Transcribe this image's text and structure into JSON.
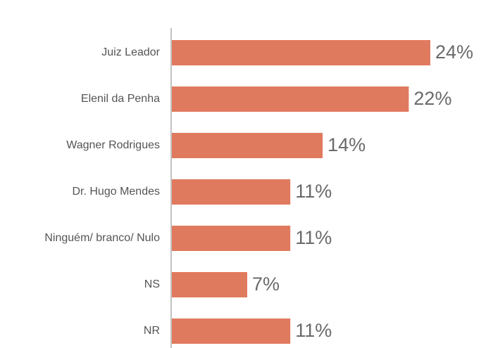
{
  "chart_data": {
    "type": "bar",
    "orientation": "horizontal",
    "categories": [
      "Juiz Leador",
      "Elenil da Penha",
      "Wagner Rodrigues",
      "Dr. Hugo Mendes",
      "Ninguém/ branco/ Nulo",
      "NS",
      "NR"
    ],
    "values": [
      24,
      22,
      14,
      11,
      11,
      7,
      11
    ],
    "value_labels": [
      "24%",
      "22%",
      "14%",
      "11%",
      "11%",
      "7%",
      "11%"
    ],
    "unit": "%",
    "xlim": [
      0,
      24
    ],
    "grid": false,
    "legend": "none",
    "bar_color": "#e07a5f",
    "axis_color": "#9a9a9a"
  }
}
